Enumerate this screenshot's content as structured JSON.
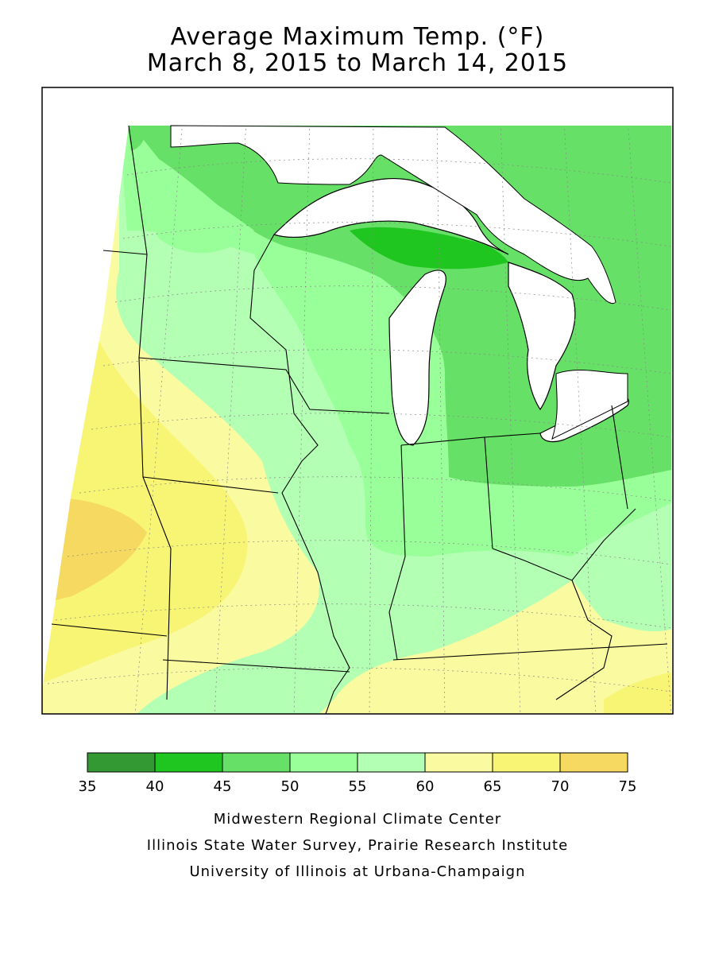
{
  "title": {
    "line1": "Average Maximum Temp. (°F)",
    "line2": "March 8, 2015 to March 14, 2015"
  },
  "legend": {
    "bins": [
      {
        "from": 35,
        "to": 40,
        "color": "#339933"
      },
      {
        "from": 40,
        "to": 45,
        "color": "#1fc61f"
      },
      {
        "from": 45,
        "to": 50,
        "color": "#66e066"
      },
      {
        "from": 50,
        "to": 55,
        "color": "#99ff99"
      },
      {
        "from": 55,
        "to": 60,
        "color": "#b3ffb3"
      },
      {
        "from": 60,
        "to": 65,
        "color": "#fafaa0"
      },
      {
        "from": 65,
        "to": 70,
        "color": "#f7f573"
      },
      {
        "from": 70,
        "to": 75,
        "color": "#f5d960"
      }
    ],
    "tick_labels": [
      "35",
      "40",
      "45",
      "50",
      "55",
      "60",
      "65",
      "70",
      "75"
    ]
  },
  "credits": {
    "line1": "Midwestern Regional Climate Center",
    "line2": "Illinois State Water Survey, Prairie Research Institute",
    "line3": "University of Illinois at Urbana-Champaign"
  },
  "colors": {
    "water": "#ffffff",
    "boundary": "#000000",
    "grid": "#888888"
  }
}
